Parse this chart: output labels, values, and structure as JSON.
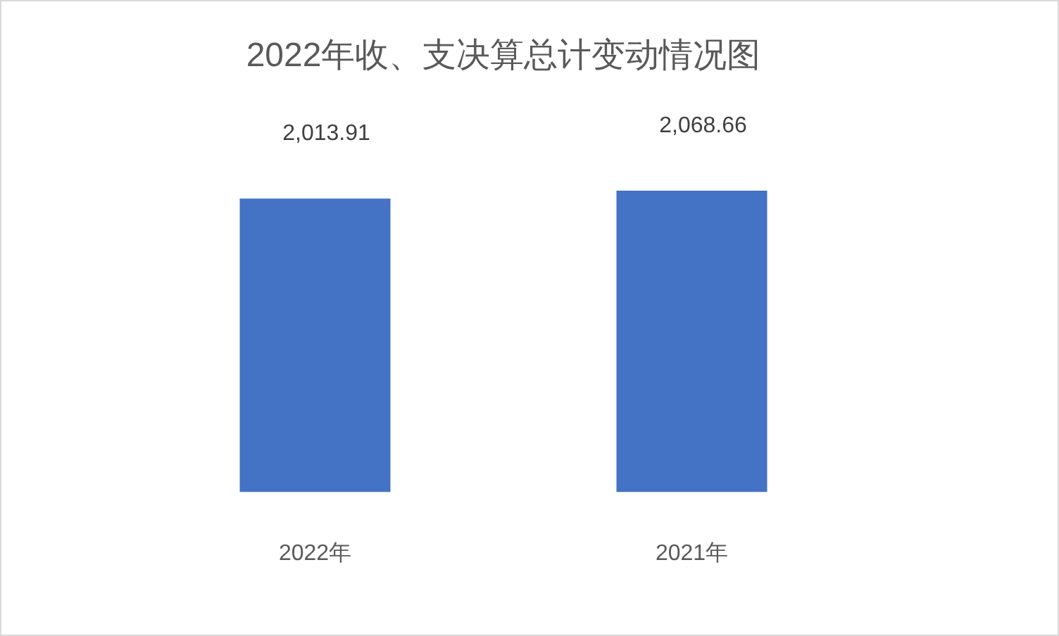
{
  "chart_data": {
    "type": "bar",
    "title": "2022年收、支决算总计变动情况图",
    "categories": [
      "2022年",
      "2021年"
    ],
    "values": [
      2013.91,
      2068.66
    ],
    "value_labels": [
      "2,013.91",
      "2,068.66"
    ],
    "color": "#4472c4",
    "tick_labels": "x",
    "legend": false
  }
}
